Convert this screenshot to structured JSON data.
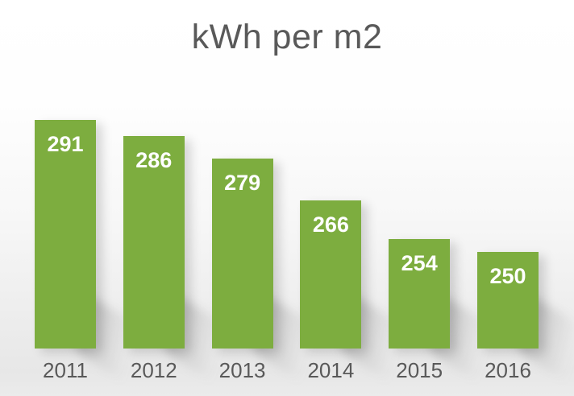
{
  "chart_data": {
    "type": "bar",
    "title": "kWh per m2",
    "categories": [
      "2011",
      "2012",
      "2013",
      "2014",
      "2015",
      "2016"
    ],
    "values": [
      291,
      286,
      279,
      266,
      254,
      250
    ],
    "xlabel": "",
    "ylabel": "",
    "ylim": [
      220,
      295
    ],
    "grid": false,
    "legend": "none",
    "axis_lines": false,
    "data_labels_position": "inside-top",
    "colors": {
      "bar_fill": "#7dad3f",
      "data_label": "#ffffff",
      "title_text": "#595959",
      "tick_text": "#595959",
      "background_top": "#ffffff",
      "background_bottom": "#ebebeb"
    }
  }
}
